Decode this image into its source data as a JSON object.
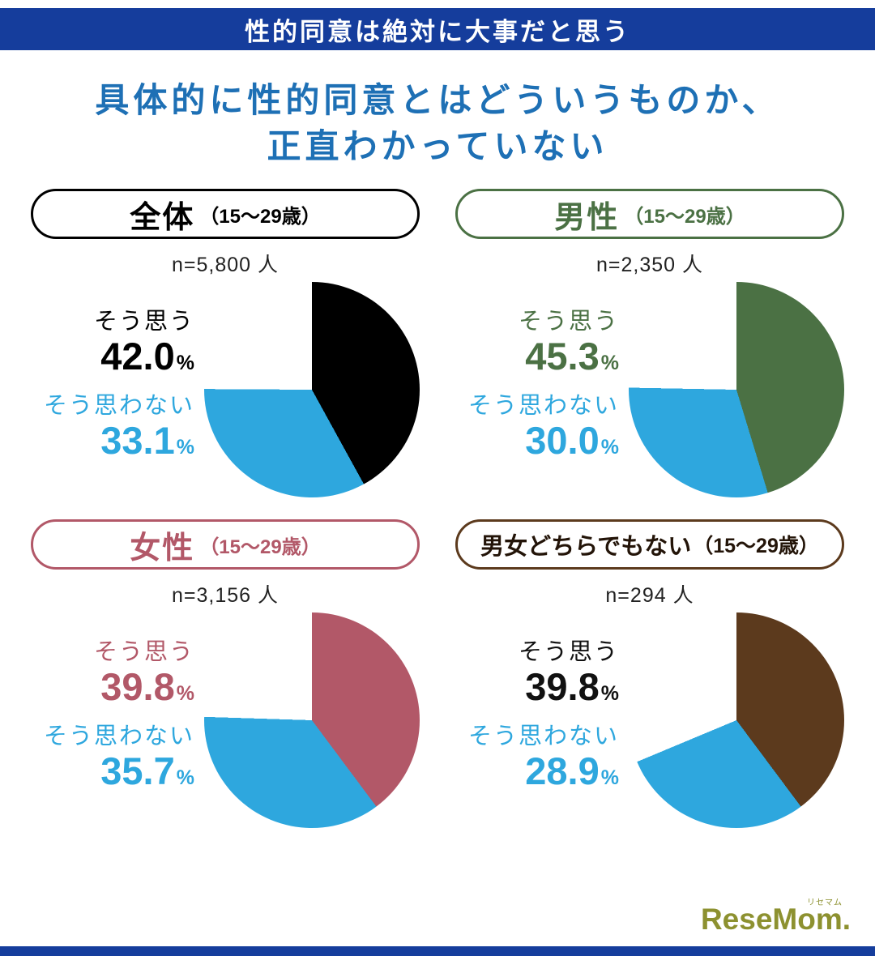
{
  "banner": {
    "title": "性的同意は絶対に大事だと思う"
  },
  "title": {
    "line1": "具体的に性的同意とはどういうものか、",
    "line2": "正直わかっていない"
  },
  "percent_sign": "%",
  "colors": {
    "banner_blue": "#153d9c",
    "title_blue": "#1e70b5",
    "disagree_blue": "#2ea7de"
  },
  "logo": {
    "name": "ReseMom.",
    "ruby": "リセマム"
  },
  "chart_data": [
    {
      "type": "pie",
      "group": "全体",
      "age": "（15〜29歳）",
      "n_label": "n=5,800 人",
      "colors": {
        "border": "#000000",
        "group_text": "#000000",
        "yes_text": "#000000",
        "no_text": "#2ea7de"
      },
      "slices": [
        {
          "label": "そう思う",
          "value": 42.0,
          "display": "42.0",
          "color": "#000000"
        },
        {
          "label": "そう思わない",
          "value": 33.1,
          "display": "33.1",
          "color": "#2ea7de"
        }
      ]
    },
    {
      "type": "pie",
      "group": "男性",
      "age": "（15〜29歳）",
      "n_label": "n=2,350 人",
      "colors": {
        "border": "#4b7144",
        "group_text": "#4b7144",
        "yes_text": "#4b7144",
        "no_text": "#2ea7de"
      },
      "slices": [
        {
          "label": "そう思う",
          "value": 45.3,
          "display": "45.3",
          "color": "#4b7144"
        },
        {
          "label": "そう思わない",
          "value": 30.0,
          "display": "30.0",
          "color": "#2ea7de"
        }
      ]
    },
    {
      "type": "pie",
      "group": "女性",
      "age": "（15〜29歳）",
      "n_label": "n=3,156 人",
      "colors": {
        "border": "#b25868",
        "group_text": "#b25868",
        "yes_text": "#b25868",
        "no_text": "#2ea7de"
      },
      "slices": [
        {
          "label": "そう思う",
          "value": 39.8,
          "display": "39.8",
          "color": "#b25868"
        },
        {
          "label": "そう思わない",
          "value": 35.7,
          "display": "35.7",
          "color": "#2ea7de"
        }
      ]
    },
    {
      "type": "pie",
      "group": "男女どちらでもない",
      "age": "（15〜29歳）",
      "n_label": "n=294 人",
      "colors": {
        "border": "#5c3a1d",
        "group_text": "#231408",
        "yes_text": "#111111",
        "no_text": "#2ea7de"
      },
      "slices": [
        {
          "label": "そう思う",
          "value": 39.8,
          "display": "39.8",
          "color": "#5c3a1d"
        },
        {
          "label": "そう思わない",
          "value": 28.9,
          "display": "28.9",
          "color": "#2ea7de"
        }
      ]
    }
  ]
}
